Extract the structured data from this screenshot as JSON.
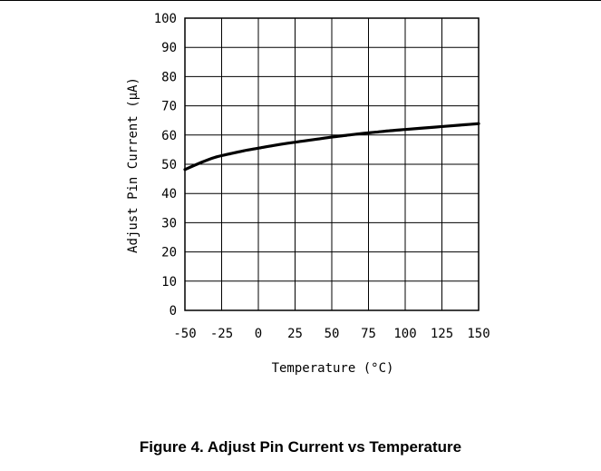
{
  "caption": "Figure 4. Adjust Pin Current vs Temperature",
  "chart_data": {
    "type": "line",
    "title": "",
    "xlabel": "Temperature (°C)",
    "ylabel": "Adjust Pin Current (μA)",
    "xlim": [
      -50,
      150
    ],
    "ylim": [
      0,
      100
    ],
    "x_ticks": [
      -50,
      -25,
      0,
      25,
      50,
      75,
      100,
      125,
      150
    ],
    "x_tick_labels": [
      "-50",
      "-25",
      "0",
      "25",
      "50",
      "75",
      "100",
      "125",
      "150"
    ],
    "y_ticks": [
      0,
      10,
      20,
      30,
      40,
      50,
      60,
      70,
      80,
      90,
      100
    ],
    "y_tick_labels": [
      "0",
      "10",
      "20",
      "30",
      "40",
      "50",
      "60",
      "70",
      "80",
      "90",
      "100"
    ],
    "grid": true,
    "series": [
      {
        "x": [
          -50,
          -40,
          -30,
          -20,
          -10,
          0,
          10,
          20,
          30,
          40,
          50,
          60,
          70,
          80,
          90,
          100,
          110,
          120,
          130,
          140,
          150
        ],
        "y": [
          48.2,
          50.4,
          52.3,
          53.5,
          54.6,
          55.5,
          56.4,
          57.2,
          57.9,
          58.6,
          59.3,
          59.9,
          60.5,
          61.0,
          61.5,
          61.9,
          62.3,
          62.7,
          63.1,
          63.5,
          63.9
        ]
      }
    ],
    "line_color": "#000000"
  }
}
